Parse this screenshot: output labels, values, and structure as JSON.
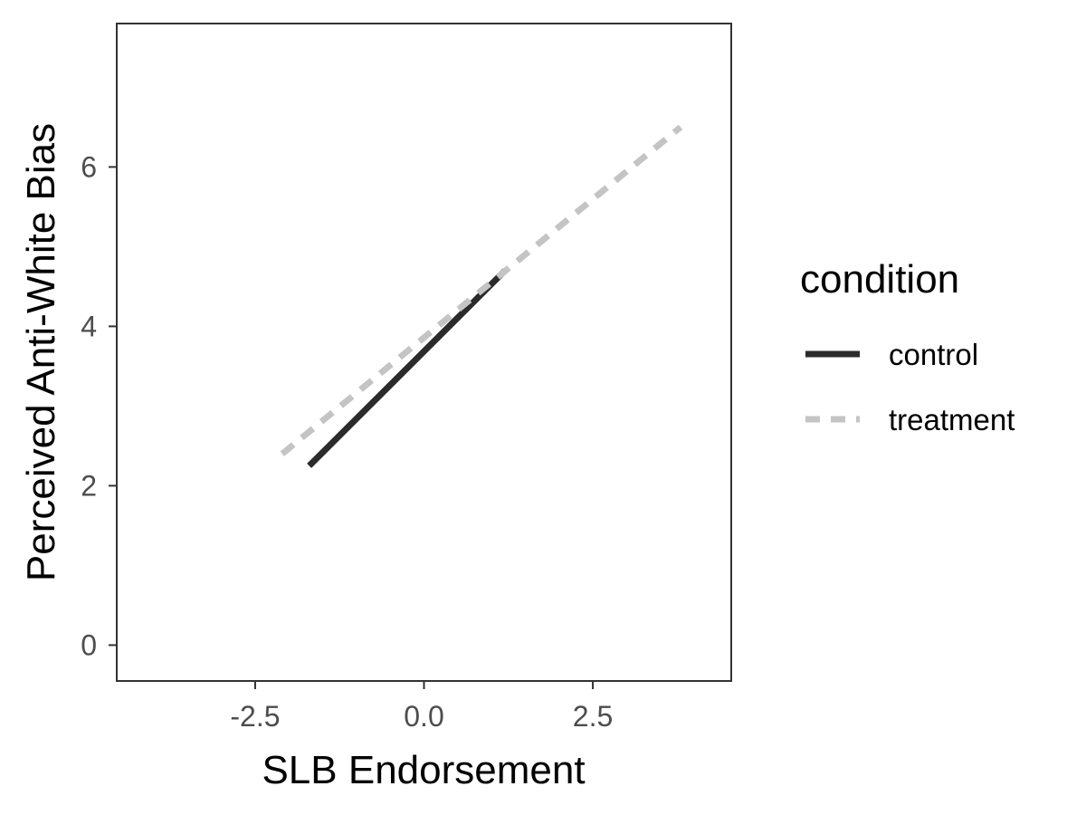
{
  "chart_data": {
    "type": "line",
    "title": "",
    "xlabel": "SLB Endorsement",
    "ylabel": "Perceived Anti-White Bias",
    "xlim": [
      -4.55,
      4.55
    ],
    "ylim": [
      -0.45,
      7.8
    ],
    "xticks": [
      -2.5,
      0.0,
      2.5
    ],
    "xtick_labels": [
      "-2.5",
      "0.0",
      "2.5"
    ],
    "yticks": [
      0,
      2,
      4,
      6
    ],
    "ytick_labels": [
      "0",
      "2",
      "4",
      "6"
    ],
    "grid": false,
    "legend": {
      "title": "condition",
      "placement": "right"
    },
    "series": [
      {
        "name": "control",
        "color": "#2b2b2b",
        "dash": "solid",
        "x": [
          -1.7,
          1.2
        ],
        "y": [
          2.25,
          4.7
        ]
      },
      {
        "name": "treatment",
        "color": "#c4c4c4",
        "dash": "dashed",
        "x": [
          -2.1,
          3.8
        ],
        "y": [
          2.4,
          6.5
        ]
      }
    ]
  }
}
